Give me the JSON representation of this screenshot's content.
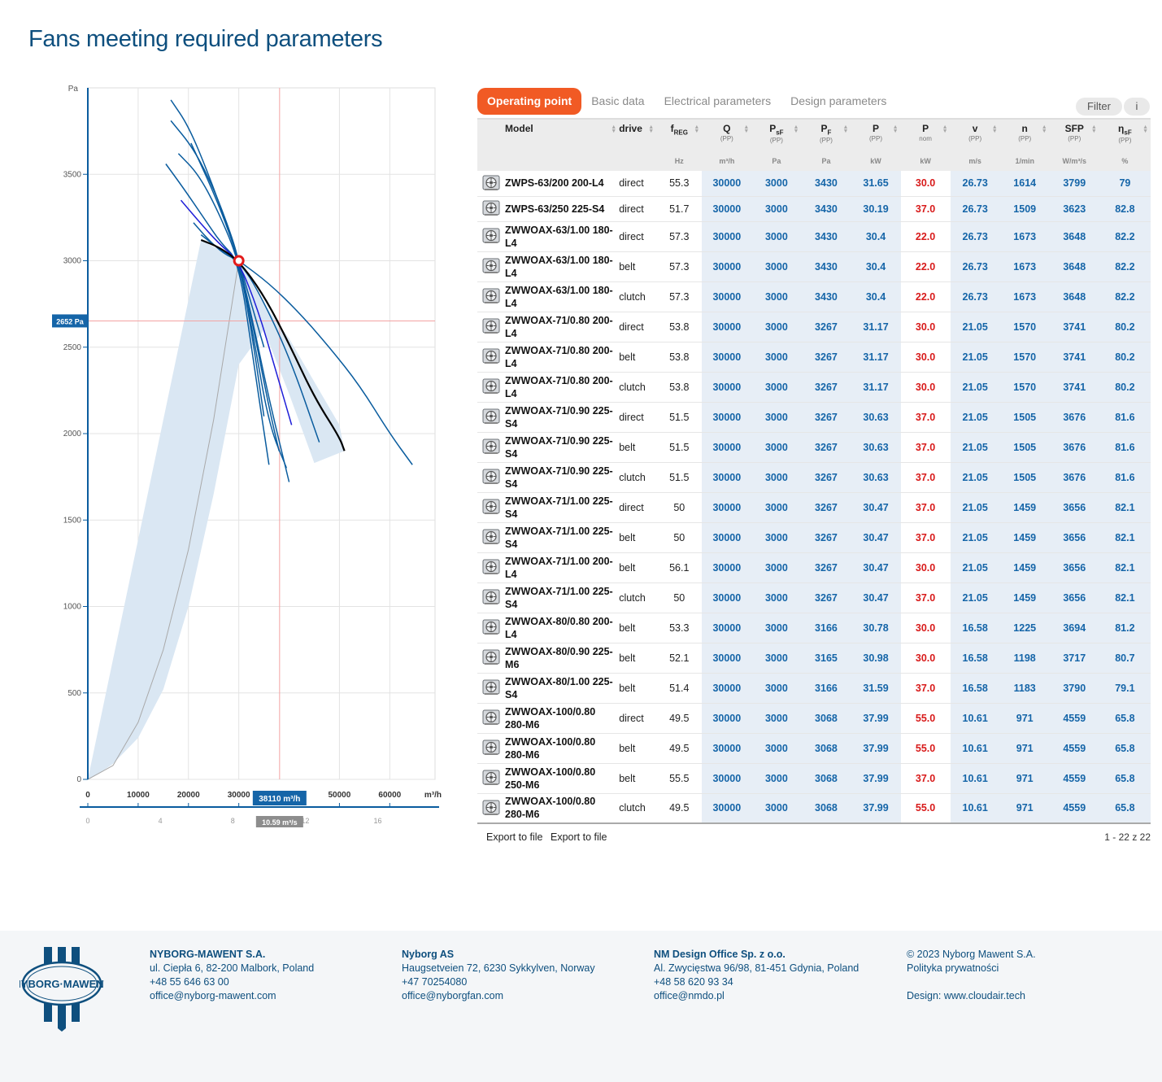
{
  "page_title": "Fans meeting required parameters",
  "tabs": [
    "Operating point",
    "Basic data",
    "Electrical parameters",
    "Design parameters"
  ],
  "buttons": {
    "filter": "Filter",
    "info": "i",
    "export1": "Export to file",
    "export2": "Export to file"
  },
  "pager": "1 - 22 z 22",
  "colors": {
    "accent": "#f15a24",
    "brand_blue": "#0e4f7e",
    "value_blue": "#1565a8",
    "value_red": "#d81b1b",
    "curve_blue": "#0a5c9e",
    "envelope": "#dae7f3"
  },
  "icons": {
    "fan": "fan-icon",
    "sort": "sort-icon",
    "logo": "nyborg-mawent-logo"
  },
  "table": {
    "headers": [
      {
        "label": "Model",
        "sub": "",
        "unit": ""
      },
      {
        "label": "drive",
        "sub": "",
        "unit": ""
      },
      {
        "label": "f",
        "sub": "REG",
        "note": "",
        "unit": "Hz"
      },
      {
        "label": "Q",
        "sub": "",
        "note": "(PP)",
        "unit": "m³/h"
      },
      {
        "label": "P",
        "sub": "sF",
        "note": "(PP)",
        "unit": "Pa"
      },
      {
        "label": "P",
        "sub": "F",
        "note": "(PP)",
        "unit": "Pa"
      },
      {
        "label": "P",
        "sub": "",
        "note": "(PP)",
        "unit": "kW"
      },
      {
        "label": "P",
        "sub": "",
        "note": "nom",
        "unit": "kW"
      },
      {
        "label": "v",
        "sub": "",
        "note": "(PP)",
        "unit": "m/s"
      },
      {
        "label": "n",
        "sub": "",
        "note": "(PP)",
        "unit": "1/min"
      },
      {
        "label": "SFP",
        "sub": "",
        "note": "(PP)",
        "unit": "W/m³/s"
      },
      {
        "label": "η",
        "sub": "sF",
        "note": "(PP)",
        "unit": "%"
      }
    ],
    "rows": [
      [
        "ZWPS-63/200 200-L4",
        "direct",
        "55.3",
        "30000",
        "3000",
        "3430",
        "31.65",
        "30.0",
        "26.73",
        "1614",
        "3799",
        "79"
      ],
      [
        "ZWPS-63/250 225-S4",
        "direct",
        "51.7",
        "30000",
        "3000",
        "3430",
        "30.19",
        "37.0",
        "26.73",
        "1509",
        "3623",
        "82.8"
      ],
      [
        "ZWWOAX-63/1.00 180-L4",
        "direct",
        "57.3",
        "30000",
        "3000",
        "3430",
        "30.4",
        "22.0",
        "26.73",
        "1673",
        "3648",
        "82.2"
      ],
      [
        "ZWWOAX-63/1.00 180-L4",
        "belt",
        "57.3",
        "30000",
        "3000",
        "3430",
        "30.4",
        "22.0",
        "26.73",
        "1673",
        "3648",
        "82.2"
      ],
      [
        "ZWWOAX-63/1.00 180-L4",
        "clutch",
        "57.3",
        "30000",
        "3000",
        "3430",
        "30.4",
        "22.0",
        "26.73",
        "1673",
        "3648",
        "82.2"
      ],
      [
        "ZWWOAX-71/0.80 200-L4",
        "direct",
        "53.8",
        "30000",
        "3000",
        "3267",
        "31.17",
        "30.0",
        "21.05",
        "1570",
        "3741",
        "80.2"
      ],
      [
        "ZWWOAX-71/0.80 200-L4",
        "belt",
        "53.8",
        "30000",
        "3000",
        "3267",
        "31.17",
        "30.0",
        "21.05",
        "1570",
        "3741",
        "80.2"
      ],
      [
        "ZWWOAX-71/0.80 200-L4",
        "clutch",
        "53.8",
        "30000",
        "3000",
        "3267",
        "31.17",
        "30.0",
        "21.05",
        "1570",
        "3741",
        "80.2"
      ],
      [
        "ZWWOAX-71/0.90 225-S4",
        "direct",
        "51.5",
        "30000",
        "3000",
        "3267",
        "30.63",
        "37.0",
        "21.05",
        "1505",
        "3676",
        "81.6"
      ],
      [
        "ZWWOAX-71/0.90 225-S4",
        "belt",
        "51.5",
        "30000",
        "3000",
        "3267",
        "30.63",
        "37.0",
        "21.05",
        "1505",
        "3676",
        "81.6"
      ],
      [
        "ZWWOAX-71/0.90 225-S4",
        "clutch",
        "51.5",
        "30000",
        "3000",
        "3267",
        "30.63",
        "37.0",
        "21.05",
        "1505",
        "3676",
        "81.6"
      ],
      [
        "ZWWOAX-71/1.00 225-S4",
        "direct",
        "50",
        "30000",
        "3000",
        "3267",
        "30.47",
        "37.0",
        "21.05",
        "1459",
        "3656",
        "82.1"
      ],
      [
        "ZWWOAX-71/1.00 225-S4",
        "belt",
        "50",
        "30000",
        "3000",
        "3267",
        "30.47",
        "37.0",
        "21.05",
        "1459",
        "3656",
        "82.1"
      ],
      [
        "ZWWOAX-71/1.00 200-L4",
        "belt",
        "56.1",
        "30000",
        "3000",
        "3267",
        "30.47",
        "30.0",
        "21.05",
        "1459",
        "3656",
        "82.1"
      ],
      [
        "ZWWOAX-71/1.00 225-S4",
        "clutch",
        "50",
        "30000",
        "3000",
        "3267",
        "30.47",
        "37.0",
        "21.05",
        "1459",
        "3656",
        "82.1"
      ],
      [
        "ZWWOAX-80/0.80 200-L4",
        "belt",
        "53.3",
        "30000",
        "3000",
        "3166",
        "30.78",
        "30.0",
        "16.58",
        "1225",
        "3694",
        "81.2"
      ],
      [
        "ZWWOAX-80/0.90 225-M6",
        "belt",
        "52.1",
        "30000",
        "3000",
        "3165",
        "30.98",
        "30.0",
        "16.58",
        "1198",
        "3717",
        "80.7"
      ],
      [
        "ZWWOAX-80/1.00 225-S4",
        "belt",
        "51.4",
        "30000",
        "3000",
        "3166",
        "31.59",
        "37.0",
        "16.58",
        "1183",
        "3790",
        "79.1"
      ],
      [
        "ZWWOAX-100/0.80 280-M6",
        "direct",
        "49.5",
        "30000",
        "3000",
        "3068",
        "37.99",
        "55.0",
        "10.61",
        "971",
        "4559",
        "65.8"
      ],
      [
        "ZWWOAX-100/0.80 280-M6",
        "belt",
        "49.5",
        "30000",
        "3000",
        "3068",
        "37.99",
        "55.0",
        "10.61",
        "971",
        "4559",
        "65.8"
      ],
      [
        "ZWWOAX-100/0.80 250-M6",
        "belt",
        "55.5",
        "30000",
        "3000",
        "3068",
        "37.99",
        "37.0",
        "10.61",
        "971",
        "4559",
        "65.8"
      ],
      [
        "ZWWOAX-100/0.80 280-M6",
        "clutch",
        "49.5",
        "30000",
        "3000",
        "3068",
        "37.99",
        "55.0",
        "10.61",
        "971",
        "4559",
        "65.8"
      ]
    ]
  },
  "chart_data": {
    "type": "line",
    "title": "",
    "ylabel": "Pa",
    "xlabel": "m³/h",
    "xlim": [
      0,
      69000
    ],
    "ylim": [
      0,
      4000
    ],
    "x_ticks": [
      0,
      10000,
      20000,
      30000,
      50000,
      60000
    ],
    "y_ticks": [
      0,
      500,
      1000,
      1500,
      2000,
      2500,
      3000,
      3500
    ],
    "secondary_x_label": "m³/s",
    "secondary_x_ticks": [
      0,
      4,
      8,
      12,
      16
    ],
    "operating_point": {
      "x": 30000,
      "y": 3000
    },
    "cursor": {
      "x": 38110,
      "y": 2652,
      "x_label": "38110 m³/h",
      "y_label": "2652 Pa",
      "x2_label": "10.59 m³/s"
    },
    "grid": true,
    "series": [
      {
        "color": "#0a5c9e",
        "x": [
          16500,
          20000,
          24000,
          28000,
          30000,
          33000,
          35000
        ],
        "y": [
          3930,
          3780,
          3500,
          3180,
          3000,
          2700,
          2500
        ]
      },
      {
        "color": "#0a5c9e",
        "x": [
          16500,
          21000,
          25000,
          28500,
          30000,
          33000,
          36000,
          38000
        ],
        "y": [
          3810,
          3650,
          3420,
          3150,
          3000,
          2600,
          2150,
          1900
        ]
      },
      {
        "color": "#0a5c9e",
        "x": [
          18000,
          22000,
          26000,
          30000,
          32500,
          35000
        ],
        "y": [
          3620,
          3500,
          3280,
          3000,
          2600,
          2100
        ]
      },
      {
        "color": "#0a5c9e",
        "x": [
          15500,
          19000,
          23000,
          26500,
          30000,
          33000,
          36000
        ],
        "y": [
          3560,
          3420,
          3250,
          3100,
          3000,
          2400,
          1820
        ]
      },
      {
        "color": "#0a5c9e",
        "x": [
          20500,
          24000,
          27000,
          30000,
          33000,
          36000,
          40000
        ],
        "y": [
          3680,
          3460,
          3250,
          3000,
          2620,
          2200,
          1720
        ]
      },
      {
        "color": "#1f1fd8",
        "x": [
          18500,
          22000,
          26000,
          30000,
          34000,
          37000,
          40500
        ],
        "y": [
          3350,
          3230,
          3100,
          3000,
          2700,
          2400,
          2050
        ]
      },
      {
        "color": "#0a5c9e",
        "x": [
          21000,
          24000,
          27000,
          30000,
          33000,
          36000,
          39500
        ],
        "y": [
          3220,
          3120,
          3040,
          3000,
          2550,
          2050,
          1800
        ]
      },
      {
        "color": "#0a5c9e",
        "x": [
          22500,
          26000,
          30000,
          34000,
          40000,
          46000
        ],
        "y": [
          3150,
          3070,
          3000,
          2820,
          2450,
          1950
        ]
      },
      {
        "color": "#000000",
        "x": [
          22500,
          26000,
          30000,
          35000,
          40000,
          45000,
          50000,
          51000
        ],
        "y": [
          3120,
          3080,
          3000,
          2800,
          2520,
          2210,
          1980,
          1900
        ]
      },
      {
        "color": "#0a5c9e",
        "x": [
          30000,
          36000,
          42000,
          48000,
          54000,
          60000,
          64500
        ],
        "y": [
          3000,
          2870,
          2700,
          2500,
          2280,
          2000,
          1820
        ]
      }
    ],
    "envelope": {
      "x": [
        0,
        2000,
        5000,
        10000,
        15000,
        20000,
        25000,
        30000,
        35000,
        40000,
        45000,
        51000,
        50000,
        45000,
        40000,
        35000,
        30000,
        25000,
        22500
      ],
      "y": [
        0,
        30,
        90,
        240,
        520,
        1000,
        1650,
        2400,
        2600,
        2230,
        1830,
        1900,
        2050,
        2300,
        2550,
        2750,
        3000,
        3080,
        3120
      ]
    },
    "system_curve": {
      "x": [
        0,
        5000,
        10000,
        15000,
        20000,
        25000,
        30000
      ],
      "y": [
        0,
        80,
        330,
        750,
        1330,
        2080,
        3000
      ]
    }
  },
  "footer": {
    "company1": {
      "name": "NYBORG-MAWENT S.A.",
      "address": "ul. Ciepła 6, 82-200 Malbork, Poland",
      "phone": "+48 55 646 63 00",
      "email": "office@nyborg-mawent.com"
    },
    "company2": {
      "name": "Nyborg AS",
      "address": "Haugsetveien 72, 6230 Sykkylven, Norway",
      "phone": "+47 70254080",
      "email": "office@nyborgfan.com"
    },
    "company3": {
      "name": "NM Design Office Sp. z o.o.",
      "address": "Al. Zwycięstwa 96/98, 81-451 Gdynia, Poland",
      "phone": "+48 58 620 93 34",
      "email": "office@nmdo.pl"
    },
    "copyright": "© 2023 Nyborg Mawent S.A.",
    "privacy": "Polityka prywatności",
    "design": "Design: www.cloudair.tech"
  }
}
